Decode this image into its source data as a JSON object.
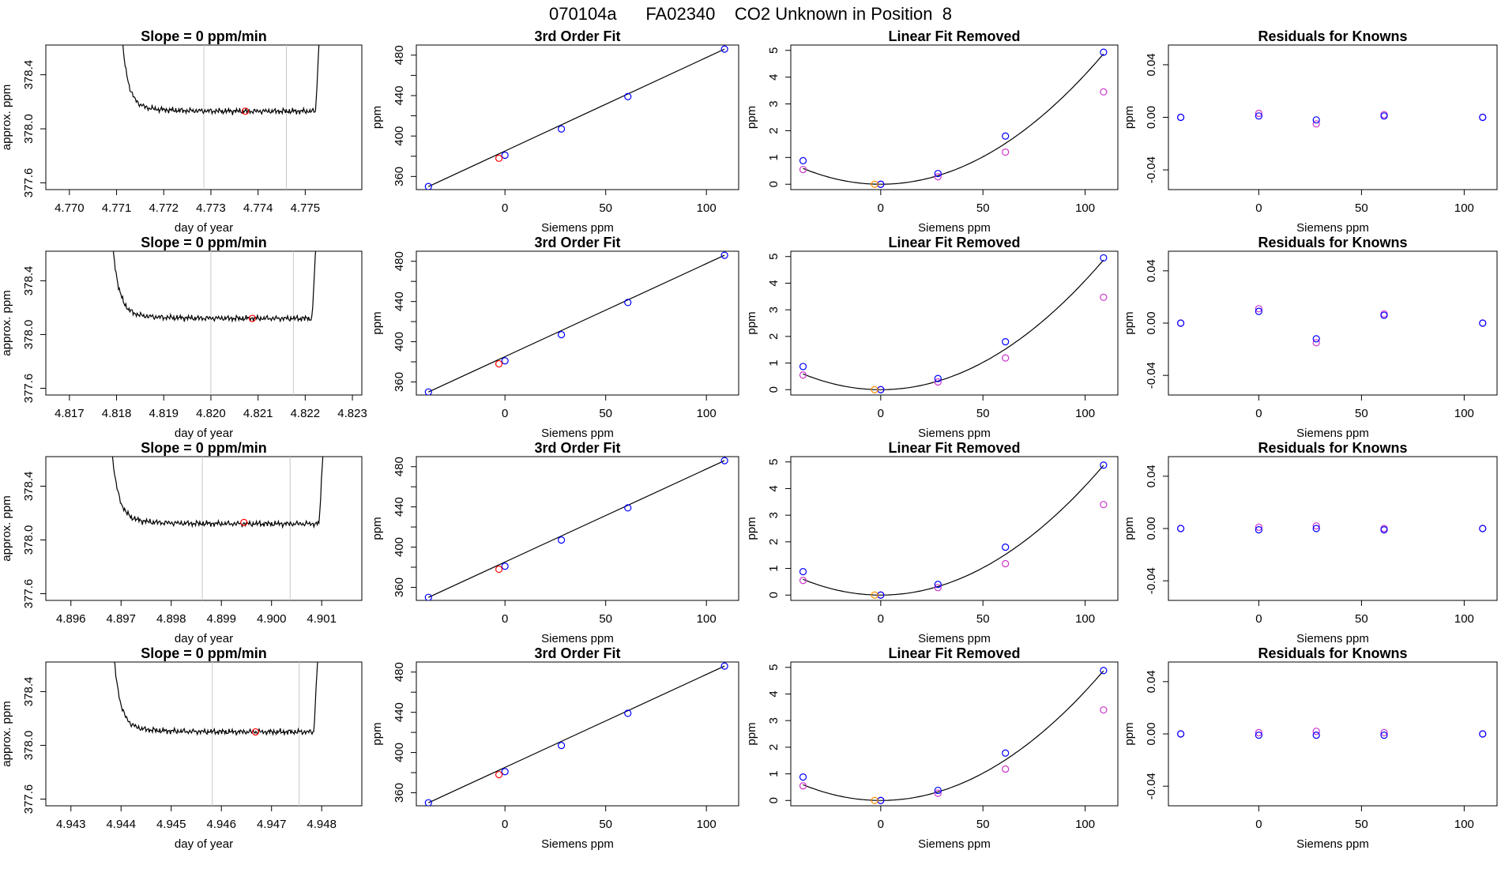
{
  "page_title": "070104a      FA02340    CO2 Unknown in Position  8",
  "colors": {
    "trace": "#000000",
    "marker_window": "#c8c8c8",
    "unknown_point": "#ff0000",
    "known_point": "#0000ff",
    "fitted_known": "#cc33cc",
    "zero_point": "#ff8c00",
    "frame": "#000000"
  },
  "chart_data": [
    {
      "type": "line",
      "row": 1,
      "panel": "trace",
      "title": "Slope =  0  ppm/min",
      "xlabel": "day of year",
      "ylabel": "approx. ppm",
      "xlim": [
        4.7695,
        4.7762
      ],
      "ylim": [
        377.55,
        378.62
      ],
      "xticks": [
        4.77,
        4.771,
        4.772,
        4.773,
        4.774,
        4.775
      ],
      "xtick_labels": [
        "4.770",
        "4.771",
        "4.772",
        "4.773",
        "4.774",
        "4.775"
      ],
      "yticks": [
        377.6,
        378.0,
        378.4
      ],
      "ytick_labels": [
        "377.6",
        "378.0",
        "378.4"
      ],
      "x_start": 4.771,
      "x_end": 4.77535,
      "plateau": 378.13,
      "window": [
        4.77285,
        4.7746
      ],
      "unknown_point": [
        4.77373,
        378.13
      ]
    },
    {
      "type": "scatter",
      "row": 1,
      "panel": "fit",
      "title": "3rd Order Fit",
      "xlabel": "Siemens ppm",
      "ylabel": "ppm",
      "xlim": [
        -44,
        116
      ],
      "ylim": [
        347,
        490
      ],
      "xticks": [
        0,
        50,
        100
      ],
      "xtick_labels": [
        "0",
        "50",
        "100"
      ],
      "yticks": [
        360,
        400,
        440,
        480
      ],
      "ytick_labels": [
        "360",
        "400",
        "440",
        "480"
      ],
      "x": [
        -38,
        0,
        28,
        61,
        109
      ],
      "y": [
        350,
        381,
        407,
        439,
        486
      ],
      "unknown": [
        -3,
        378
      ]
    },
    {
      "type": "scatter",
      "row": 1,
      "panel": "linear_removed",
      "title": "Linear Fit Removed",
      "xlabel": "Siemens ppm",
      "ylabel": "ppm",
      "xlim": [
        -44,
        116
      ],
      "ylim": [
        -0.2,
        5.2
      ],
      "xticks": [
        0,
        50,
        100
      ],
      "xtick_labels": [
        "0",
        "50",
        "100"
      ],
      "yticks": [
        0,
        1,
        2,
        3,
        4,
        5
      ],
      "ytick_labels": [
        "0",
        "1",
        "2",
        "3",
        "4",
        "5"
      ],
      "curve": [
        0,
        0,
        0.00041
      ],
      "knowns_x": [
        -38,
        0,
        28,
        61,
        109
      ],
      "knowns_y": [
        0.88,
        0.0,
        0.4,
        1.8,
        4.93
      ],
      "fitted_y": [
        0.55,
        0.0,
        0.28,
        1.2,
        3.45
      ],
      "zero_x": -3,
      "zero_y": 0.0
    },
    {
      "type": "scatter",
      "row": 1,
      "panel": "residuals",
      "title": "Residuals for Knowns",
      "xlabel": "Siemens ppm",
      "ylabel": "ppm",
      "xlim": [
        -44,
        116
      ],
      "ylim": [
        -0.055,
        0.055
      ],
      "xticks": [
        0,
        50,
        100
      ],
      "xtick_labels": [
        "0",
        "50",
        "100"
      ],
      "yticks": [
        -0.04,
        0.0,
        0.04
      ],
      "ytick_labels": [
        "-0.04",
        "0.00",
        "0.04"
      ],
      "x": [
        -38,
        0,
        28,
        61,
        109
      ],
      "blue": [
        0.0,
        0.001,
        -0.002,
        0.001,
        0.0
      ],
      "magenta": [
        0.0,
        0.003,
        -0.005,
        0.002,
        0.0
      ]
    },
    {
      "type": "line",
      "row": 2,
      "panel": "trace",
      "title": "Slope =  0  ppm/min",
      "xlabel": "day of year",
      "ylabel": "approx. ppm",
      "xlim": [
        4.8165,
        4.8232
      ],
      "ylim": [
        377.55,
        378.62
      ],
      "xticks": [
        4.817,
        4.818,
        4.819,
        4.82,
        4.821,
        4.822,
        4.823
      ],
      "xtick_labels": [
        "4.817",
        "4.818",
        "4.819",
        "4.820",
        "4.821",
        "4.822",
        "4.823"
      ],
      "yticks": [
        377.6,
        378.0,
        378.4
      ],
      "ytick_labels": [
        "377.6",
        "378.0",
        "378.4"
      ],
      "x_start": 4.8178,
      "x_end": 4.82228,
      "plateau": 378.12,
      "window": [
        4.82,
        4.82175
      ],
      "unknown_point": [
        4.82088,
        378.12
      ]
    },
    {
      "type": "scatter",
      "row": 2,
      "panel": "fit",
      "title": "3rd Order Fit",
      "xlabel": "Siemens ppm",
      "ylabel": "ppm",
      "xlim": [
        -44,
        116
      ],
      "ylim": [
        347,
        490
      ],
      "xticks": [
        0,
        50,
        100
      ],
      "xtick_labels": [
        "0",
        "50",
        "100"
      ],
      "yticks": [
        360,
        400,
        440,
        480
      ],
      "ytick_labels": [
        "360",
        "400",
        "440",
        "480"
      ],
      "x": [
        -38,
        0,
        28,
        61,
        109
      ],
      "y": [
        350,
        381,
        407,
        439,
        486
      ],
      "unknown": [
        -3,
        378
      ]
    },
    {
      "type": "scatter",
      "row": 2,
      "panel": "linear_removed",
      "title": "Linear Fit Removed",
      "xlabel": "Siemens ppm",
      "ylabel": "ppm",
      "xlim": [
        -44,
        116
      ],
      "ylim": [
        -0.2,
        5.2
      ],
      "xticks": [
        0,
        50,
        100
      ],
      "xtick_labels": [
        "0",
        "50",
        "100"
      ],
      "yticks": [
        0,
        1,
        2,
        3,
        4,
        5
      ],
      "ytick_labels": [
        "0",
        "1",
        "2",
        "3",
        "4",
        "5"
      ],
      "curve": [
        0,
        0,
        0.00041
      ],
      "knowns_x": [
        -38,
        0,
        28,
        61,
        109
      ],
      "knowns_y": [
        0.87,
        0.0,
        0.42,
        1.8,
        4.95
      ],
      "fitted_y": [
        0.55,
        0.0,
        0.29,
        1.19,
        3.47
      ],
      "zero_x": -3,
      "zero_y": 0.0
    },
    {
      "type": "scatter",
      "row": 2,
      "panel": "residuals",
      "title": "Residuals for Knowns",
      "xlabel": "Siemens ppm",
      "ylabel": "ppm",
      "xlim": [
        -44,
        116
      ],
      "ylim": [
        -0.055,
        0.055
      ],
      "xticks": [
        0,
        50,
        100
      ],
      "xtick_labels": [
        "0",
        "50",
        "100"
      ],
      "yticks": [
        -0.04,
        0.0,
        0.04
      ],
      "ytick_labels": [
        "-0.04",
        "0.00",
        "0.04"
      ],
      "x": [
        -38,
        0,
        28,
        61,
        109
      ],
      "blue": [
        0.0,
        0.009,
        -0.012,
        0.006,
        0.0
      ],
      "magenta": [
        0.0,
        0.011,
        -0.015,
        0.007,
        0.0
      ]
    },
    {
      "type": "line",
      "row": 3,
      "panel": "trace",
      "title": "Slope =  0  ppm/min",
      "xlabel": "day of year",
      "ylabel": "approx. ppm",
      "xlim": [
        4.8955,
        4.9018
      ],
      "ylim": [
        377.55,
        378.62
      ],
      "xticks": [
        4.896,
        4.897,
        4.898,
        4.899,
        4.9,
        4.901
      ],
      "xtick_labels": [
        "4.896",
        "4.897",
        "4.898",
        "4.899",
        "4.900",
        "4.901"
      ],
      "yticks": [
        377.6,
        378.0,
        378.4
      ],
      "ytick_labels": [
        "377.6",
        "378.0",
        "378.4"
      ],
      "x_start": 4.8967,
      "x_end": 4.90108,
      "plateau": 378.12,
      "window": [
        4.89862,
        4.90037
      ],
      "unknown_point": [
        4.89945,
        378.13
      ]
    },
    {
      "type": "scatter",
      "row": 3,
      "panel": "fit",
      "title": "3rd Order Fit",
      "xlabel": "Siemens ppm",
      "ylabel": "ppm",
      "xlim": [
        -44,
        116
      ],
      "ylim": [
        347,
        490
      ],
      "xticks": [
        0,
        50,
        100
      ],
      "xtick_labels": [
        "0",
        "50",
        "100"
      ],
      "yticks": [
        360,
        400,
        440,
        480
      ],
      "ytick_labels": [
        "360",
        "400",
        "440",
        "480"
      ],
      "x": [
        -38,
        0,
        28,
        61,
        109
      ],
      "y": [
        350,
        381,
        407,
        439,
        486
      ],
      "unknown": [
        -3,
        378
      ]
    },
    {
      "type": "scatter",
      "row": 3,
      "panel": "linear_removed",
      "title": "Linear Fit Removed",
      "xlabel": "Siemens ppm",
      "ylabel": "ppm",
      "xlim": [
        -44,
        116
      ],
      "ylim": [
        -0.2,
        5.2
      ],
      "xticks": [
        0,
        50,
        100
      ],
      "xtick_labels": [
        "0",
        "50",
        "100"
      ],
      "yticks": [
        0,
        1,
        2,
        3,
        4,
        5
      ],
      "ytick_labels": [
        "0",
        "1",
        "2",
        "3",
        "4",
        "5"
      ],
      "curve": [
        0,
        0,
        0.00041
      ],
      "knowns_x": [
        -38,
        0,
        28,
        61,
        109
      ],
      "knowns_y": [
        0.88,
        0.0,
        0.4,
        1.8,
        4.88
      ],
      "fitted_y": [
        0.55,
        0.0,
        0.28,
        1.18,
        3.4
      ],
      "zero_x": -3,
      "zero_y": 0.0
    },
    {
      "type": "scatter",
      "row": 3,
      "panel": "residuals",
      "title": "Residuals for Knowns",
      "xlabel": "Siemens ppm",
      "ylabel": "ppm",
      "xlim": [
        -44,
        116
      ],
      "ylim": [
        -0.055,
        0.055
      ],
      "xticks": [
        0,
        50,
        100
      ],
      "xtick_labels": [
        "0",
        "50",
        "100"
      ],
      "yticks": [
        -0.04,
        0.0,
        0.04
      ],
      "ytick_labels": [
        "-0.04",
        "0.00",
        "0.04"
      ],
      "x": [
        -38,
        0,
        28,
        61,
        109
      ],
      "blue": [
        0.0,
        -0.001,
        0.0,
        -0.001,
        0.0
      ],
      "magenta": [
        0.0,
        0.001,
        0.002,
        0.0,
        0.0
      ]
    },
    {
      "type": "line",
      "row": 4,
      "panel": "trace",
      "title": "Slope =  0  ppm/min",
      "xlabel": "day of year",
      "ylabel": "approx. ppm",
      "xlim": [
        4.9425,
        4.9488
      ],
      "ylim": [
        377.55,
        378.62
      ],
      "xticks": [
        4.943,
        4.944,
        4.945,
        4.946,
        4.947,
        4.948
      ],
      "xtick_labels": [
        "4.943",
        "4.944",
        "4.945",
        "4.946",
        "4.947",
        "4.948"
      ],
      "yticks": [
        377.6,
        378.0,
        378.4
      ],
      "ytick_labels": [
        "377.6",
        "378.0",
        "378.4"
      ],
      "x_start": 4.94375,
      "x_end": 4.94797,
      "plateau": 378.1,
      "window": [
        4.94582,
        4.94755
      ],
      "unknown_point": [
        4.94668,
        378.1
      ]
    },
    {
      "type": "scatter",
      "row": 4,
      "panel": "fit",
      "title": "3rd Order Fit",
      "xlabel": "Siemens ppm",
      "ylabel": "ppm",
      "xlim": [
        -44,
        116
      ],
      "ylim": [
        347,
        490
      ],
      "xticks": [
        0,
        50,
        100
      ],
      "xtick_labels": [
        "0",
        "50",
        "100"
      ],
      "yticks": [
        360,
        400,
        440,
        480
      ],
      "ytick_labels": [
        "360",
        "400",
        "440",
        "480"
      ],
      "x": [
        -38,
        0,
        28,
        61,
        109
      ],
      "y": [
        350,
        381,
        407,
        439,
        486
      ],
      "unknown": [
        -3,
        378
      ]
    },
    {
      "type": "scatter",
      "row": 4,
      "panel": "linear_removed",
      "title": "Linear Fit Removed",
      "xlabel": "Siemens ppm",
      "ylabel": "ppm",
      "xlim": [
        -44,
        116
      ],
      "ylim": [
        -0.2,
        5.2
      ],
      "xticks": [
        0,
        50,
        100
      ],
      "xtick_labels": [
        "0",
        "50",
        "100"
      ],
      "yticks": [
        0,
        1,
        2,
        3,
        4,
        5
      ],
      "ytick_labels": [
        "0",
        "1",
        "2",
        "3",
        "4",
        "5"
      ],
      "curve": [
        0,
        0,
        0.00041
      ],
      "knowns_x": [
        -38,
        0,
        28,
        61,
        109
      ],
      "knowns_y": [
        0.88,
        0.0,
        0.38,
        1.78,
        4.88
      ],
      "fitted_y": [
        0.55,
        0.0,
        0.27,
        1.18,
        3.4
      ],
      "zero_x": -3,
      "zero_y": 0.0
    },
    {
      "type": "scatter",
      "row": 4,
      "panel": "residuals",
      "title": "Residuals for Knowns",
      "xlabel": "Siemens ppm",
      "ylabel": "ppm",
      "xlim": [
        -44,
        116
      ],
      "ylim": [
        -0.055,
        0.055
      ],
      "xticks": [
        0,
        50,
        100
      ],
      "xtick_labels": [
        "0",
        "50",
        "100"
      ],
      "yticks": [
        -0.04,
        0.0,
        0.04
      ],
      "ytick_labels": [
        "-0.04",
        "0.00",
        "0.04"
      ],
      "x": [
        -38,
        0,
        28,
        61,
        109
      ],
      "blue": [
        0.0,
        -0.001,
        -0.001,
        -0.001,
        0.0
      ],
      "magenta": [
        0.0,
        0.001,
        0.002,
        0.001,
        0.0
      ]
    }
  ]
}
